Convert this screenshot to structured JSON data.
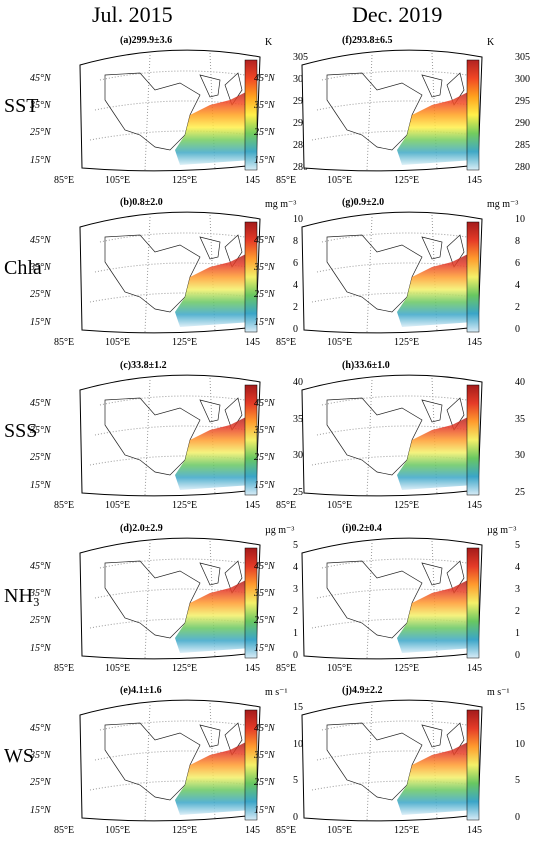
{
  "columns": [
    {
      "title": "Jul. 2015"
    },
    {
      "title": "Dec. 2019"
    }
  ],
  "rows": [
    {
      "label": "SST",
      "unit": "K",
      "ticks": [
        "305",
        "300",
        "295",
        "290",
        "285",
        "280"
      ]
    },
    {
      "label": "Chla",
      "unit": "mg m⁻³",
      "ticks": [
        "10",
        "8",
        "6",
        "4",
        "2",
        "0"
      ]
    },
    {
      "label": "SSS",
      "unit": "",
      "ticks": [
        "40",
        "35",
        "30",
        "25"
      ]
    },
    {
      "label": "NH₃",
      "unit": "µg m⁻³",
      "ticks": [
        "5",
        "4",
        "3",
        "2",
        "1",
        "0"
      ]
    },
    {
      "label": "WS",
      "unit": "m s⁻¹",
      "ticks": [
        "15",
        "10",
        "5",
        "0"
      ]
    }
  ],
  "panels": [
    {
      "title": "(a)299.9±3.6"
    },
    {
      "title": "(f)293.8±6.5"
    },
    {
      "title": "(b)0.8±2.0"
    },
    {
      "title": "(g)0.9±2.0"
    },
    {
      "title": "(c)33.8±1.2"
    },
    {
      "title": "(h)33.6±1.0"
    },
    {
      "title": "(d)2.0±2.9"
    },
    {
      "title": "(i)0.2±0.4"
    },
    {
      "title": "(e)4.1±1.6"
    },
    {
      "title": "(j)4.9±2.2"
    }
  ],
  "axes": {
    "lat": [
      "45°N",
      "35°N",
      "25°N",
      "15°N"
    ],
    "lon": [
      "85°E",
      "105°E",
      "125°E",
      "145"
    ]
  },
  "colormap": {
    "SST": [
      "#b22222",
      "#f14724",
      "#ffa21e",
      "#fff04a",
      "#73cc5e",
      "#3fa8c6",
      "#d9eef6"
    ],
    "generic": [
      "#a41b1b",
      "#e53b27",
      "#ff9b2e",
      "#f4f068",
      "#68c761",
      "#3aa5c8",
      "#d8ecf7"
    ]
  }
}
